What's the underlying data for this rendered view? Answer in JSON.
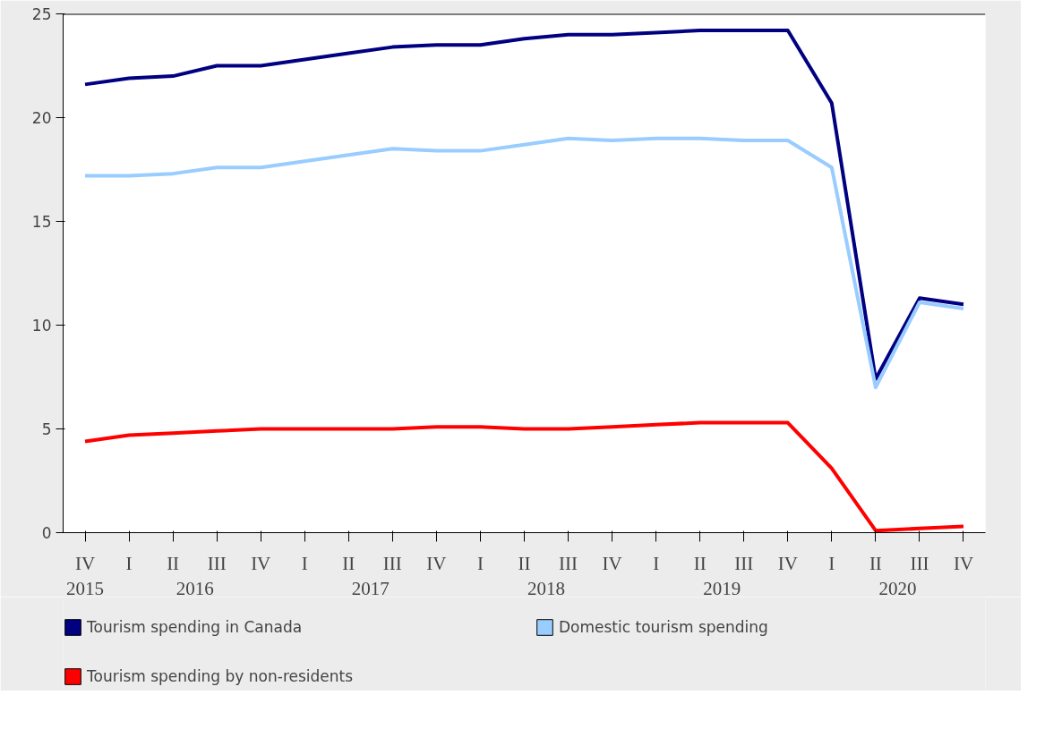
{
  "chart_data": {
    "type": "line",
    "categories": [
      "IV",
      "I",
      "II",
      "III",
      "IV",
      "I",
      "II",
      "III",
      "IV",
      "I",
      "II",
      "III",
      "IV",
      "I",
      "II",
      "III",
      "IV",
      "I",
      "II",
      "III",
      "IV"
    ],
    "annotations": [
      "2015",
      "2016",
      "2017",
      "2018",
      "2019",
      "2020"
    ],
    "series": [
      {
        "name": "Tourism spending in Canada",
        "color": "#000080",
        "values": [
          21.6,
          21.9,
          22.0,
          22.5,
          22.5,
          22.8,
          23.1,
          23.4,
          23.5,
          23.5,
          23.8,
          24.0,
          24.0,
          24.1,
          24.2,
          24.2,
          24.2,
          20.7,
          7.4,
          11.3,
          11.0
        ]
      },
      {
        "name": "Domestic tourism spending",
        "color": "#99ccff",
        "values": [
          17.2,
          17.2,
          17.3,
          17.6,
          17.6,
          17.9,
          18.2,
          18.5,
          18.4,
          18.4,
          18.7,
          19.0,
          18.9,
          19.0,
          19.0,
          18.9,
          18.9,
          17.6,
          7.0,
          11.1,
          10.8
        ]
      },
      {
        "name": "Tourism spending by non-residents",
        "color": "#ff0000",
        "values": [
          4.4,
          4.7,
          4.8,
          4.9,
          5.0,
          5.0,
          5.0,
          5.0,
          5.1,
          5.1,
          5.0,
          5.0,
          5.1,
          5.2,
          5.3,
          5.3,
          5.3,
          3.1,
          0.1,
          0.2,
          0.3
        ]
      }
    ],
    "ylim": [
      0,
      25
    ],
    "yticks": [
      0,
      5,
      10,
      15,
      20,
      25
    ],
    "grid": false,
    "legend": "bottom",
    "marker": "none",
    "line_style": "solid"
  }
}
